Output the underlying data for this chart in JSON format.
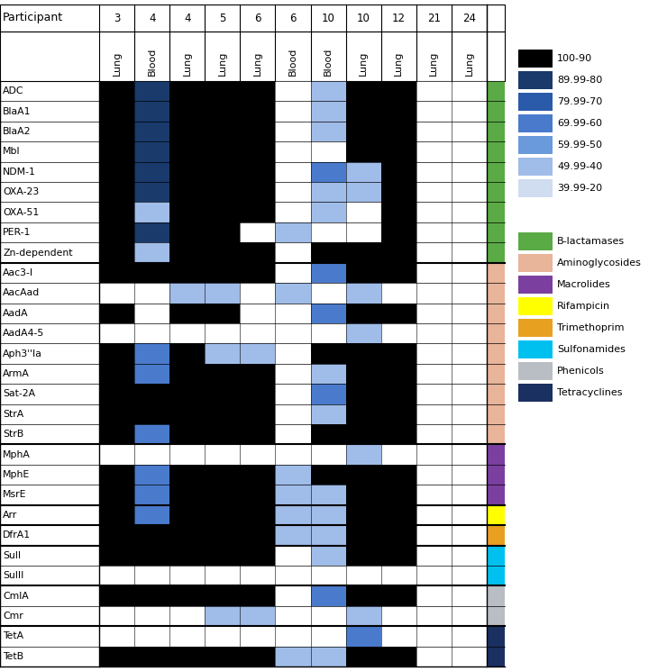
{
  "rows": [
    "ADC",
    "BlaA1",
    "BlaA2",
    "Mbl",
    "NDM-1",
    "OXA-23",
    "OXA-51",
    "PER-1",
    "Zn-dependent",
    "Aac3-I",
    "AacAad",
    "AadA",
    "AadA4-5",
    "Aph3''Ia",
    "ArmA",
    "Sat-2A",
    "StrA",
    "StrB",
    "MphA",
    "MphE",
    "MsrE",
    "Arr",
    "DfrA1",
    "SulI",
    "SulII",
    "CmlA",
    "Cmr",
    "TetA",
    "TetB"
  ],
  "col_participants": [
    "3",
    "4",
    "4",
    "5",
    "6",
    "6",
    "10",
    "10",
    "12",
    "21",
    "24"
  ],
  "col_sample_types": [
    "Lung",
    "Blood",
    "Lung",
    "Lung",
    "Lung",
    "Blood",
    "Blood",
    "Lung",
    "Lung",
    "Lung",
    "Lung"
  ],
  "row_categories": [
    "B-lactamases",
    "B-lactamases",
    "B-lactamases",
    "B-lactamases",
    "B-lactamases",
    "B-lactamases",
    "B-lactamases",
    "B-lactamases",
    "B-lactamases",
    "Aminoglycosides",
    "Aminoglycosides",
    "Aminoglycosides",
    "Aminoglycosides",
    "Aminoglycosides",
    "Aminoglycosides",
    "Aminoglycosides",
    "Aminoglycosides",
    "Aminoglycosides",
    "Macrolides",
    "Macrolides",
    "Macrolides",
    "Rifampicin",
    "Trimethoprim",
    "Sulfonamides",
    "Sulfonamides",
    "Phenicols",
    "Phenicols",
    "Tetracyclines",
    "Tetracyclines"
  ],
  "category_colors": {
    "B-lactamases": "#5aaa45",
    "Aminoglycosides": "#e8b49a",
    "Macrolides": "#7b3fa0",
    "Rifampicin": "#ffff00",
    "Trimethoprim": "#e8a020",
    "Sulfonamides": "#00c0f0",
    "Phenicols": "#b8bec4",
    "Tetracyclines": "#1a3060"
  },
  "heatmap_data": [
    [
      95,
      85,
      95,
      95,
      95,
      0,
      45,
      95,
      95,
      0,
      0
    ],
    [
      95,
      83,
      95,
      95,
      95,
      0,
      42,
      95,
      95,
      0,
      0
    ],
    [
      95,
      80,
      95,
      95,
      95,
      0,
      42,
      95,
      95,
      0,
      0
    ],
    [
      95,
      81,
      95,
      95,
      95,
      0,
      0,
      95,
      95,
      0,
      0
    ],
    [
      95,
      81,
      95,
      95,
      95,
      0,
      67,
      46,
      95,
      0,
      0
    ],
    [
      95,
      81,
      95,
      95,
      95,
      0,
      45,
      44,
      95,
      0,
      0
    ],
    [
      95,
      47,
      95,
      95,
      95,
      0,
      44,
      0,
      95,
      0,
      0
    ],
    [
      95,
      80,
      95,
      95,
      0,
      44,
      0,
      0,
      95,
      0,
      0
    ],
    [
      95,
      47,
      95,
      95,
      95,
      0,
      95,
      95,
      95,
      0,
      0
    ],
    [
      95,
      95,
      95,
      95,
      95,
      0,
      67,
      95,
      95,
      0,
      0
    ],
    [
      0,
      0,
      44,
      44,
      0,
      44,
      0,
      43,
      0,
      0,
      0
    ],
    [
      95,
      0,
      95,
      95,
      0,
      0,
      65,
      95,
      95,
      0,
      0
    ],
    [
      0,
      0,
      0,
      0,
      0,
      0,
      0,
      44,
      0,
      0,
      0
    ],
    [
      95,
      64,
      95,
      45,
      44,
      0,
      95,
      95,
      95,
      0,
      0
    ],
    [
      95,
      64,
      95,
      95,
      95,
      0,
      45,
      95,
      95,
      0,
      0
    ],
    [
      95,
      95,
      95,
      95,
      95,
      0,
      67,
      95,
      95,
      0,
      0
    ],
    [
      95,
      95,
      95,
      95,
      95,
      0,
      44,
      95,
      95,
      0,
      0
    ],
    [
      95,
      64,
      95,
      95,
      95,
      0,
      95,
      95,
      95,
      0,
      0
    ],
    [
      0,
      0,
      0,
      0,
      0,
      0,
      0,
      44,
      0,
      0,
      0
    ],
    [
      95,
      64,
      95,
      95,
      95,
      44,
      95,
      95,
      95,
      0,
      0
    ],
    [
      95,
      63,
      95,
      95,
      95,
      44,
      44,
      95,
      95,
      0,
      0
    ],
    [
      95,
      63,
      95,
      95,
      95,
      44,
      44,
      95,
      95,
      0,
      0
    ],
    [
      95,
      95,
      95,
      95,
      95,
      44,
      44,
      95,
      95,
      0,
      0
    ],
    [
      95,
      95,
      95,
      95,
      95,
      0,
      44,
      95,
      95,
      0,
      0
    ],
    [
      0,
      0,
      0,
      0,
      0,
      0,
      0,
      0,
      0,
      0,
      0
    ],
    [
      95,
      95,
      95,
      95,
      95,
      0,
      65,
      95,
      95,
      0,
      0
    ],
    [
      0,
      0,
      0,
      44,
      44,
      0,
      0,
      44,
      0,
      0,
      0
    ],
    [
      0,
      0,
      0,
      0,
      0,
      0,
      0,
      66,
      0,
      0,
      0
    ],
    [
      95,
      95,
      95,
      95,
      95,
      44,
      44,
      95,
      95,
      0,
      0
    ]
  ],
  "legend_intensity": [
    {
      "label": "100-90",
      "color": "#000000"
    },
    {
      "label": "89.99-80",
      "color": "#1a3a6b"
    },
    {
      "label": "79.99-70",
      "color": "#2a5aaa"
    },
    {
      "label": "69.99-60",
      "color": "#4a7acc"
    },
    {
      "label": "59.99-50",
      "color": "#6a9adc"
    },
    {
      "label": "49.99-40",
      "color": "#a0bce8"
    },
    {
      "label": "39.99-20",
      "color": "#d0dcf0"
    }
  ],
  "legend_categories": [
    {
      "label": "B-lactamases",
      "color": "#5aaa45"
    },
    {
      "label": "Aminoglycosides",
      "color": "#e8b49a"
    },
    {
      "label": "Macrolides",
      "color": "#7b3fa0"
    },
    {
      "label": "Rifampicin",
      "color": "#ffff00"
    },
    {
      "label": "Trimethoprim",
      "color": "#e8a020"
    },
    {
      "label": "Sulfonamides",
      "color": "#00c0f0"
    },
    {
      "label": "Phenicols",
      "color": "#b8bec4"
    },
    {
      "label": "Tetracyclines",
      "color": "#1a3060"
    }
  ]
}
